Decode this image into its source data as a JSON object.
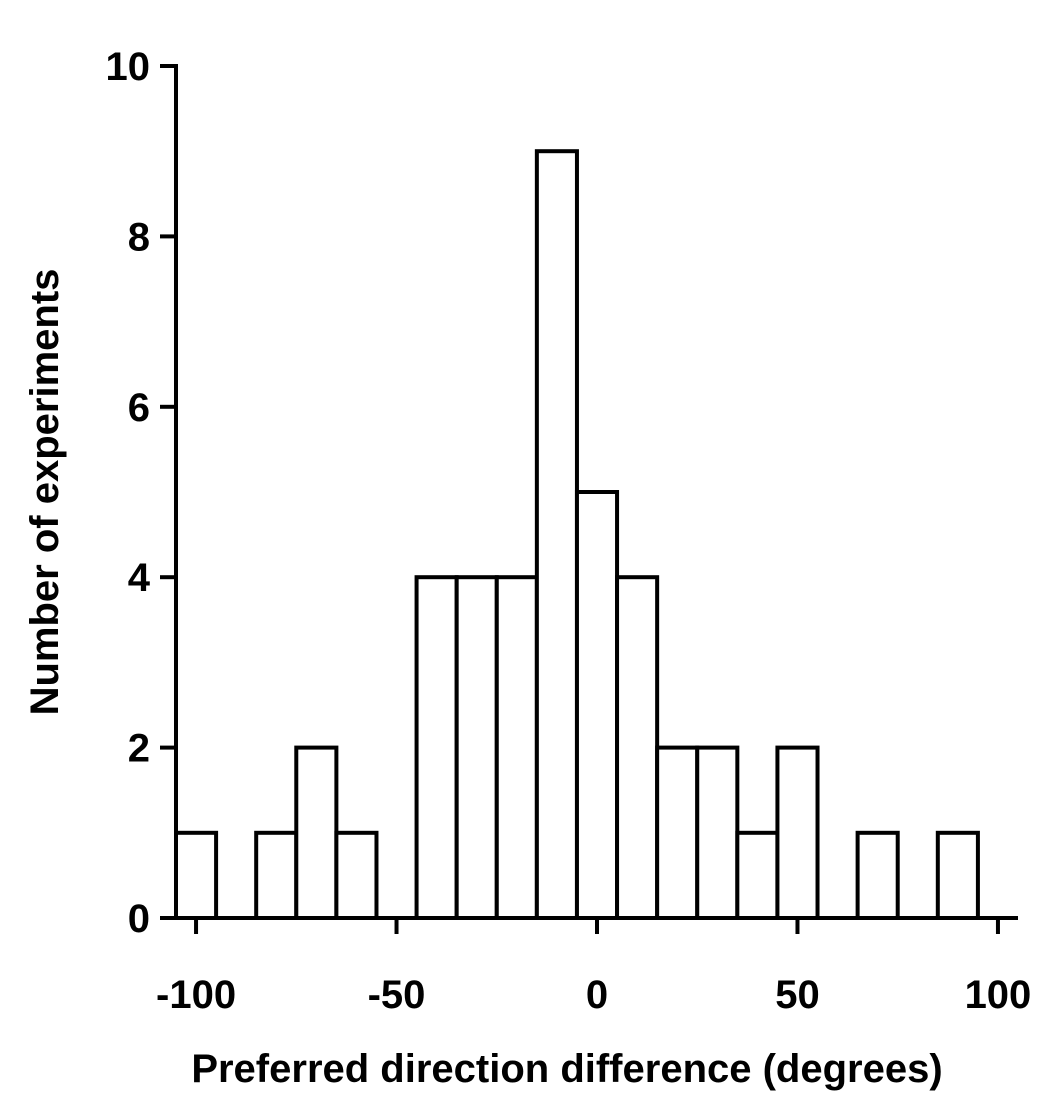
{
  "chart_data": {
    "type": "bar",
    "subtype": "histogram",
    "title": "",
    "xlabel": "Preferred direction difference (degrees)",
    "ylabel": "Number of experiments",
    "xlim": [
      -105,
      105
    ],
    "ylim": [
      0,
      10
    ],
    "x_ticks": [
      -100,
      -50,
      0,
      50,
      100
    ],
    "x_tick_labels": [
      "-100",
      "-50",
      "0",
      "50",
      "100"
    ],
    "y_ticks": [
      0,
      2,
      4,
      6,
      8,
      10
    ],
    "y_tick_labels": [
      "0",
      "2",
      "4",
      "6",
      "8",
      "10"
    ],
    "bins": [
      {
        "x0": -105,
        "x1": -95,
        "count": 1
      },
      {
        "x0": -85,
        "x1": -75,
        "count": 1
      },
      {
        "x0": -75,
        "x1": -65,
        "count": 2
      },
      {
        "x0": -65,
        "x1": -55,
        "count": 1
      },
      {
        "x0": -45,
        "x1": -35,
        "count": 4
      },
      {
        "x0": -35,
        "x1": -25,
        "count": 4
      },
      {
        "x0": -25,
        "x1": -15,
        "count": 4
      },
      {
        "x0": -15,
        "x1": -5,
        "count": 9
      },
      {
        "x0": -5,
        "x1": 5,
        "count": 5
      },
      {
        "x0": 5,
        "x1": 15,
        "count": 4
      },
      {
        "x0": 15,
        "x1": 25,
        "count": 2
      },
      {
        "x0": 25,
        "x1": 35,
        "count": 2
      },
      {
        "x0": 35,
        "x1": 45,
        "count": 1
      },
      {
        "x0": 45,
        "x1": 55,
        "count": 2
      },
      {
        "x0": 65,
        "x1": 75,
        "count": 1
      },
      {
        "x0": 85,
        "x1": 95,
        "count": 1
      }
    ],
    "grid": false,
    "legend": "none",
    "bar_fill": "#ffffff",
    "bar_stroke": "#000000"
  }
}
